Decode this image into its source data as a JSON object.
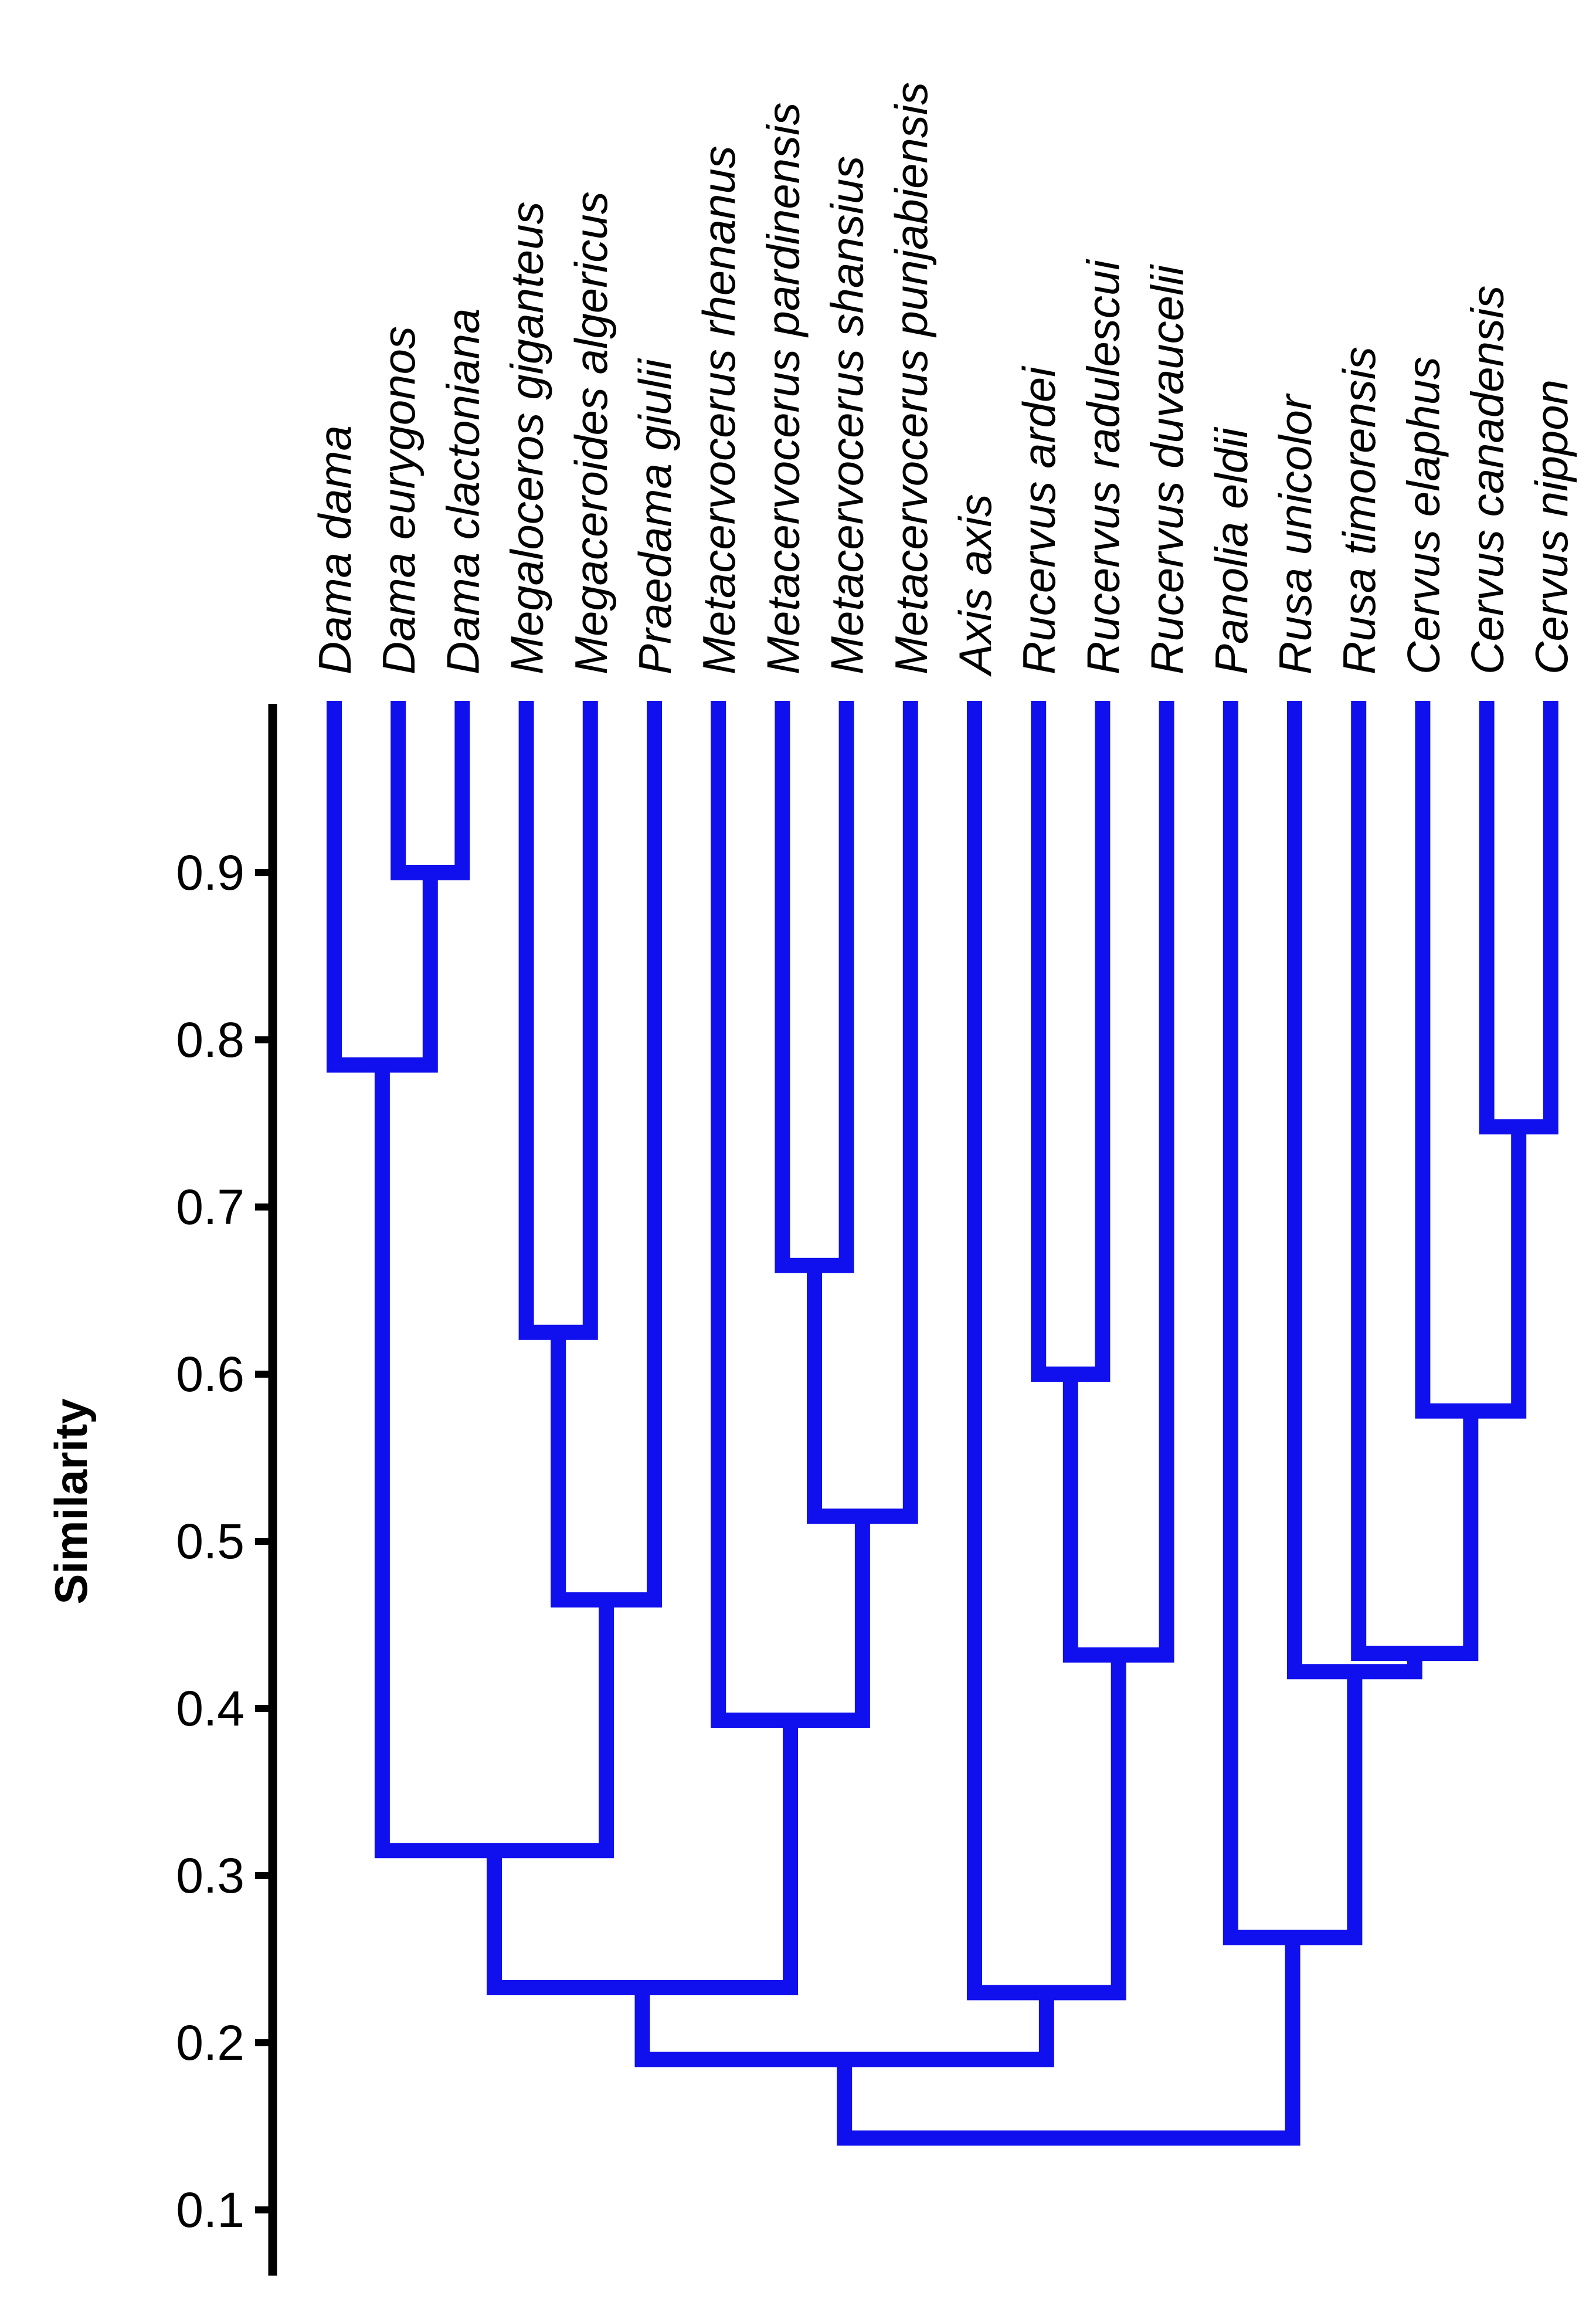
{
  "chart_data": {
    "type": "dendrogram",
    "ylabel": "Similarity",
    "ylim": [
      0.05,
      1.0
    ],
    "yticks": [
      "0.1",
      "0.2",
      "0.3",
      "0.4",
      "0.5",
      "0.6",
      "0.7",
      "0.8",
      "0.9"
    ],
    "taxa": [
      "Dama dama",
      "Dama eurygonos",
      "Dama clactoniana",
      "Megaloceros giganteus",
      "Megaceroides algericus",
      "Praedama giulii",
      "Metacervocerus rhenanus",
      "Metacervocerus pardinensis",
      "Metacervocerus shansius",
      "Metacervocerus punjabiensis",
      "Axis axis",
      "Rucervus ardei",
      "Rucervus radulescui",
      "Rucervus duvaucelii",
      "Panolia eldii",
      "Rusa unicolor",
      "Rusa timorensis",
      "Cervus elaphus",
      "Cervus canadensis",
      "Cervus nippon"
    ],
    "merges": [
      {
        "a": "L1",
        "b": "L2",
        "similarity": 0.9
      },
      {
        "a": "L0",
        "b": "M0",
        "similarity": 0.785
      },
      {
        "a": "L3",
        "b": "L4",
        "similarity": 0.625
      },
      {
        "a": "M2",
        "b": "L5",
        "similarity": 0.465
      },
      {
        "a": "M1",
        "b": "M3",
        "similarity": 0.315
      },
      {
        "a": "L7",
        "b": "L8",
        "similarity": 0.665
      },
      {
        "a": "M5",
        "b": "L9",
        "similarity": 0.515
      },
      {
        "a": "L6",
        "b": "M6",
        "similarity": 0.393
      },
      {
        "a": "M4",
        "b": "M7",
        "similarity": 0.233
      },
      {
        "a": "L11",
        "b": "L12",
        "similarity": 0.6
      },
      {
        "a": "M9",
        "b": "L13",
        "similarity": 0.432
      },
      {
        "a": "L10",
        "b": "M10",
        "similarity": 0.23
      },
      {
        "a": "M8",
        "b": "M11",
        "similarity": 0.19
      },
      {
        "a": "L18",
        "b": "L19",
        "similarity": 0.748
      },
      {
        "a": "L17",
        "b": "M13",
        "similarity": 0.578
      },
      {
        "a": "L16",
        "b": "M14",
        "similarity": 0.433
      },
      {
        "a": "L15",
        "b": "M15",
        "similarity": 0.422
      },
      {
        "a": "L14",
        "b": "M16",
        "similarity": 0.263
      },
      {
        "a": "M12",
        "b": "M17",
        "similarity": 0.143
      }
    ],
    "colors": {
      "branches": "#1010ee",
      "axis": "#000000"
    }
  }
}
